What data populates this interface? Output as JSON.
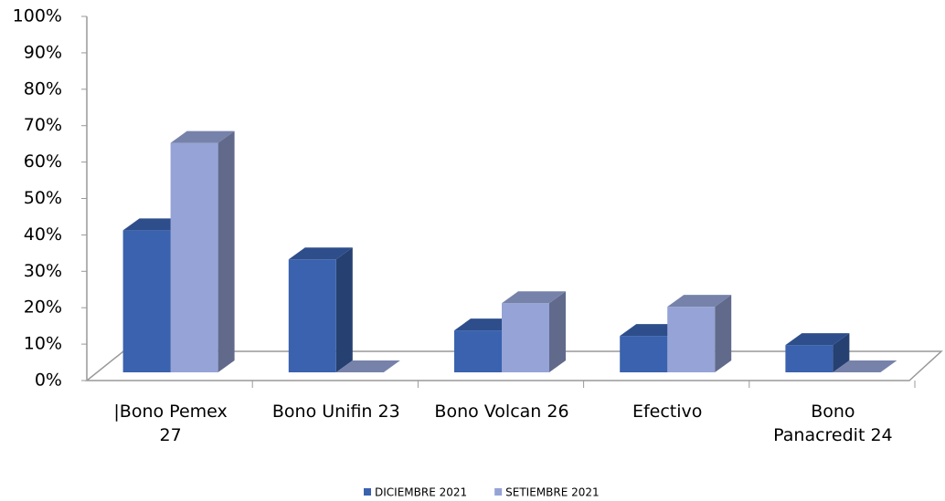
{
  "chart_data": {
    "type": "bar3d",
    "categories": [
      "|Bono Pemex 27",
      "Bono Unifin 23",
      "Bono Volcan 26",
      "Efectivo",
      "Bono Panacredit 24"
    ],
    "series": [
      {
        "name": "DICIEMBRE 2021",
        "color": "#3a62ae",
        "values": [
          39,
          31,
          11.5,
          10,
          7.5
        ]
      },
      {
        "name": "SETIEMBRE 2021",
        "color": "#95a3d6",
        "values": [
          63,
          0,
          19,
          18,
          0
        ]
      }
    ],
    "ylim": [
      0,
      100
    ],
    "yticks": [
      {
        "value": 0,
        "label": "0%"
      },
      {
        "value": 10,
        "label": "10%"
      },
      {
        "value": 20,
        "label": "20%"
      },
      {
        "value": 30,
        "label": "30%"
      },
      {
        "value": 40,
        "label": "40%"
      },
      {
        "value": 50,
        "label": "50%"
      },
      {
        "value": 60,
        "label": "60%"
      },
      {
        "value": 70,
        "label": "70%"
      },
      {
        "value": 80,
        "label": "80%"
      },
      {
        "value": 90,
        "label": "90%"
      },
      {
        "value": 100,
        "label": "100%"
      }
    ],
    "legend": "bottom"
  }
}
